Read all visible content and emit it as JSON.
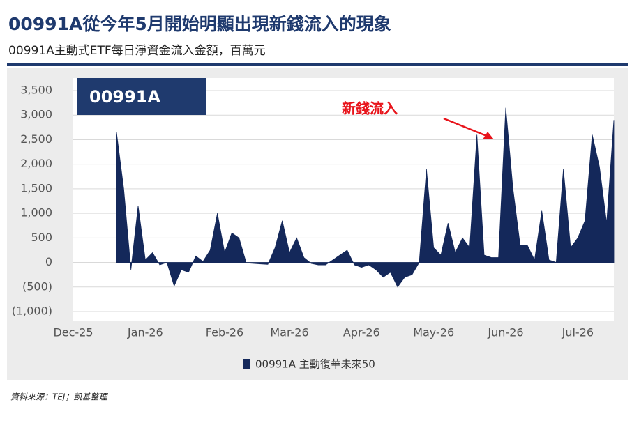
{
  "chart_data": {
    "type": "area",
    "title": "00991A從今年5月開始明顯出現新錢流入的現象",
    "subtitle": "00991A主動式ETF每日淨資金流入金額，百萬元",
    "badge": "00991A",
    "annotation": "新錢流入",
    "source": "資料來源：TEJ；凱基整理",
    "categories": [
      "Dec-25",
      null,
      null,
      null,
      null,
      null,
      null,
      null,
      null,
      null,
      "Jan-26",
      null,
      null,
      null,
      null,
      null,
      null,
      null,
      null,
      null,
      null,
      "Feb-26",
      null,
      null,
      null,
      null,
      null,
      null,
      null,
      null,
      "Mar-26",
      null,
      null,
      null,
      null,
      null,
      null,
      null,
      null,
      null,
      "Apr-26",
      null,
      null,
      null,
      null,
      null,
      null,
      null,
      null,
      null,
      "May-26",
      null,
      null,
      null,
      null,
      null,
      null,
      null,
      null,
      null,
      "Jun-26",
      null,
      null,
      null,
      null,
      null,
      null,
      null,
      null,
      null,
      "Jul-26",
      null,
      null,
      null,
      null,
      null
    ],
    "series": [
      {
        "name": "00991A 主動復華未來50",
        "color": "#14285a",
        "values": [
          null,
          null,
          null,
          null,
          null,
          null,
          2650,
          1500,
          -150,
          1150,
          50,
          200,
          -50,
          0,
          -480,
          -150,
          -200,
          130,
          20,
          250,
          1000,
          200,
          600,
          500,
          -10,
          -20,
          -30,
          -40,
          300,
          850,
          200,
          500,
          100,
          -20,
          -50,
          -50,
          50,
          150,
          250,
          -50,
          -100,
          -50,
          -150,
          -300,
          -200,
          -500,
          -300,
          -250,
          0,
          1900,
          300,
          150,
          800,
          200,
          500,
          300,
          2600,
          150,
          100,
          100,
          3150,
          1500,
          350,
          350,
          50,
          1050,
          50,
          0,
          1900,
          300,
          500,
          850,
          2600,
          1950,
          800,
          2900
        ]
      }
    ],
    "ylim": [
      -1000,
      3500
    ],
    "yticks": [
      {
        "value": -1000,
        "label": "(1,000)"
      },
      {
        "value": -500,
        "label": "(500)"
      },
      0,
      500,
      {
        "value": 1000,
        "label": "1,000"
      },
      {
        "value": 1500,
        "label": "1,500"
      },
      {
        "value": 2000,
        "label": "2,000"
      },
      {
        "value": 2500,
        "label": "2,500"
      },
      {
        "value": 3000,
        "label": "3,000"
      },
      {
        "value": 3500,
        "label": "3,500"
      }
    ],
    "grid": true
  }
}
